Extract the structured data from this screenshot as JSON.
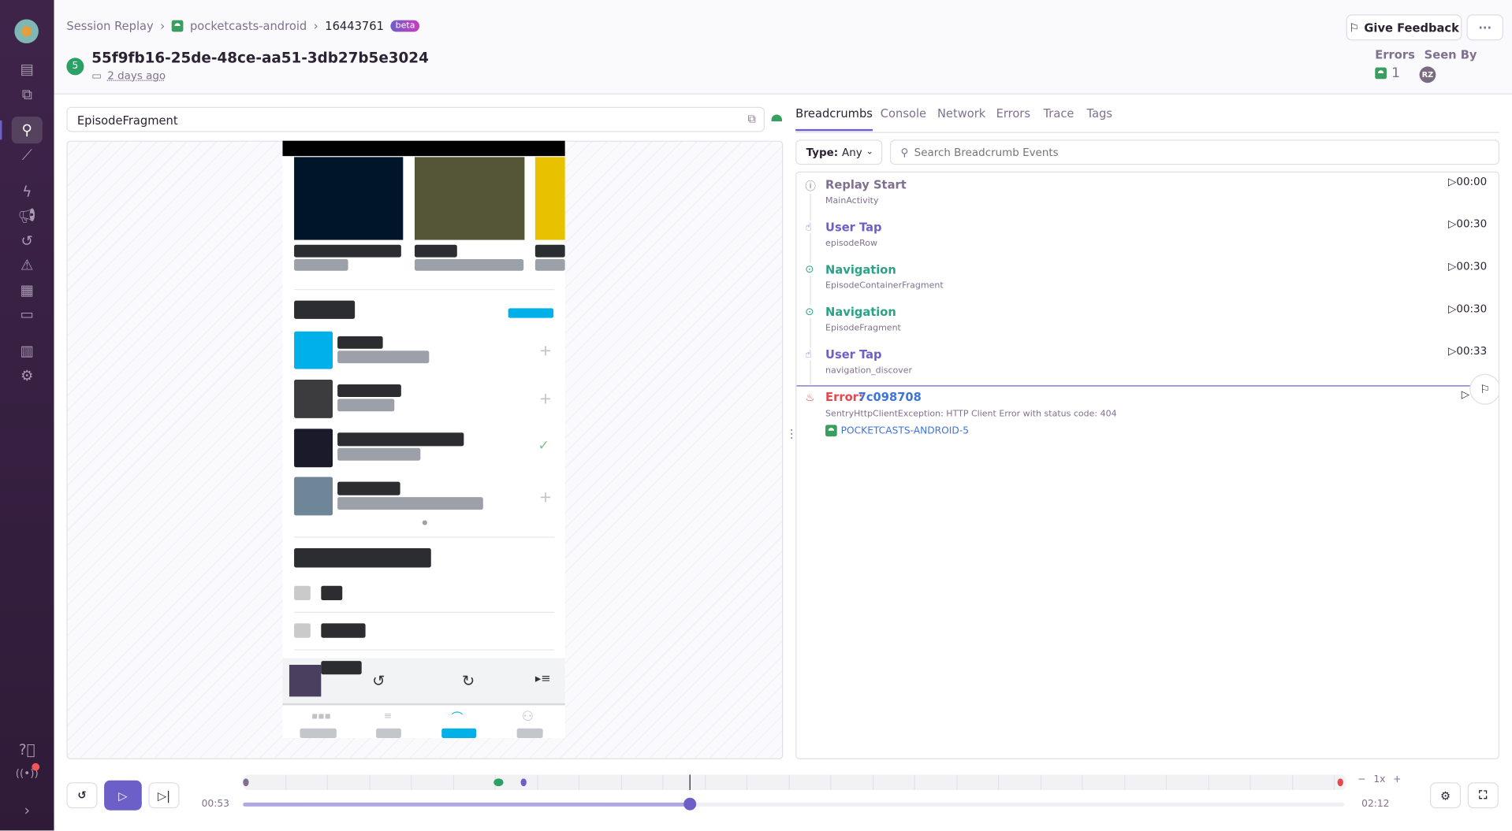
{
  "breadcrumb": {
    "root": "Session Replay",
    "project": "pocketcasts-android",
    "replay_id": "16443761",
    "badge": "beta"
  },
  "header": {
    "title": "55f9fb16-25de-48ce-aa51-3db27b5e3024",
    "error_count_badge": "5",
    "date": "2 days ago",
    "feedback_label": "Give Feedback",
    "more_label": "···",
    "errors_label": "Errors",
    "errors_value": "1",
    "seen_by_label": "Seen By",
    "seen_by_avatar": "RZ"
  },
  "url_bar": {
    "value": "EpisodeFragment"
  },
  "tabs": [
    {
      "label": "Breadcrumbs",
      "active": true
    },
    {
      "label": "Console"
    },
    {
      "label": "Network"
    },
    {
      "label": "Errors"
    },
    {
      "label": "Trace"
    },
    {
      "label": "Tags"
    }
  ],
  "filter": {
    "type_label": "Type:",
    "type_value": "Any",
    "search_placeholder": "Search Breadcrumb Events"
  },
  "breadcrumbs": [
    {
      "title": "Replay Start",
      "sub": "MainActivity",
      "time": "00:00",
      "icon": "info-icon",
      "color": "#80708f"
    },
    {
      "title": "User Tap",
      "sub": "episodeRow",
      "time": "00:30",
      "icon": "hand-tap-icon",
      "color": "#6c5fc7"
    },
    {
      "title": "Navigation",
      "sub": "EpisodeContainerFragment",
      "time": "00:30",
      "icon": "location-icon",
      "color": "#2ba185"
    },
    {
      "title": "Navigation",
      "sub": "EpisodeFragment",
      "time": "00:30",
      "icon": "location-icon",
      "color": "#2ba185"
    },
    {
      "title": "User Tap",
      "sub": "navigation_discover",
      "time": "00:33",
      "icon": "hand-tap-icon",
      "color": "#6c5fc7"
    }
  ],
  "error_crumb": {
    "label": "Error:",
    "id": "7c098708",
    "message": "SentryHttpClientException: HTTP Client Error with status code: 404",
    "issue": "POCKETCASTS-ANDROID-5"
  },
  "player": {
    "current_time": "00:53",
    "duration": "02:12",
    "progress_percent": 40.5,
    "speed": "1x",
    "minus": "−",
    "plus": "+"
  },
  "colors": {
    "accent": "#6c5fc7",
    "error": "#e5484d",
    "success": "#2ba185",
    "sidebar": "#3e2449"
  }
}
